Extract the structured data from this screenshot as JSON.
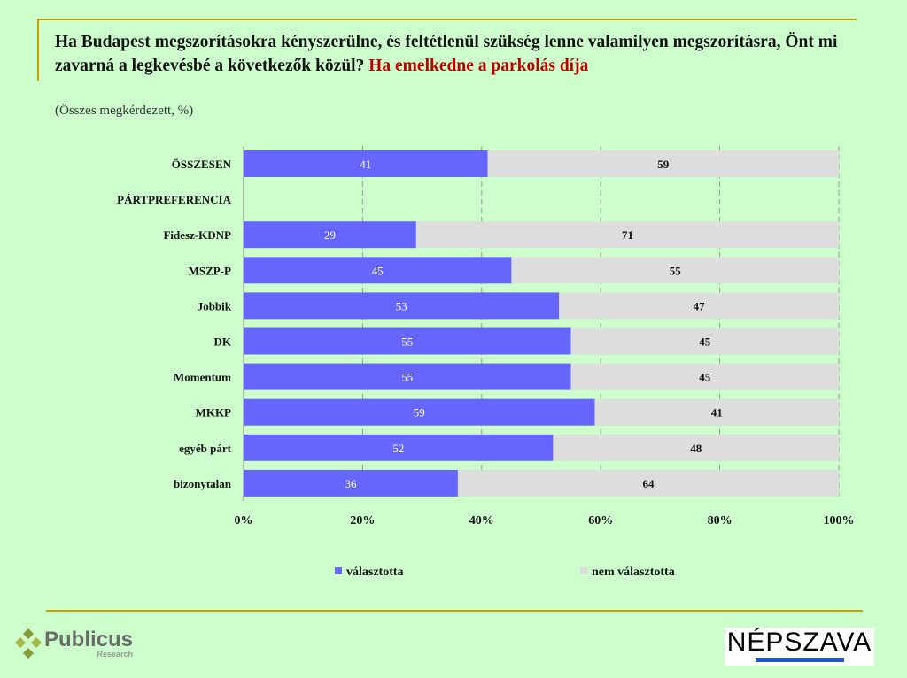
{
  "title": {
    "main": "Ha Budapest megszorításokra kényszerülne, és feltétlenül szükség lenne valamilyen megszorításra, Önt mi zavarná a legkevésbé a következők közül?",
    "highlight": "Ha emelkedne a parkolás díja",
    "subtitle": "(Összes megkérdezett, %)"
  },
  "chart_data": {
    "type": "bar",
    "orientation": "horizontal",
    "stacked": true,
    "categories": [
      "ÖSSZESEN",
      "PÁRTPREFERENCIA",
      "Fidesz-KDNP",
      "MSZP-P",
      "Jobbik",
      "DK",
      "Momentum",
      "MKKP",
      "egyéb párt",
      "bizonytalan"
    ],
    "series": [
      {
        "name": "választotta",
        "color": "#6666ff",
        "values": [
          41,
          null,
          29,
          45,
          53,
          55,
          55,
          59,
          52,
          36
        ]
      },
      {
        "name": "nem választotta",
        "color": "#dddddd",
        "values": [
          59,
          null,
          71,
          55,
          47,
          45,
          45,
          41,
          48,
          64
        ]
      }
    ],
    "xlim": [
      0,
      100
    ],
    "xticks": [
      "0%",
      "20%",
      "40%",
      "60%",
      "80%",
      "100%"
    ],
    "grid": "vertical-dashed",
    "legend": "bottom"
  },
  "logos": {
    "left": "Publicus",
    "left_sub": "Research",
    "right": "NÉPSZAVA"
  }
}
